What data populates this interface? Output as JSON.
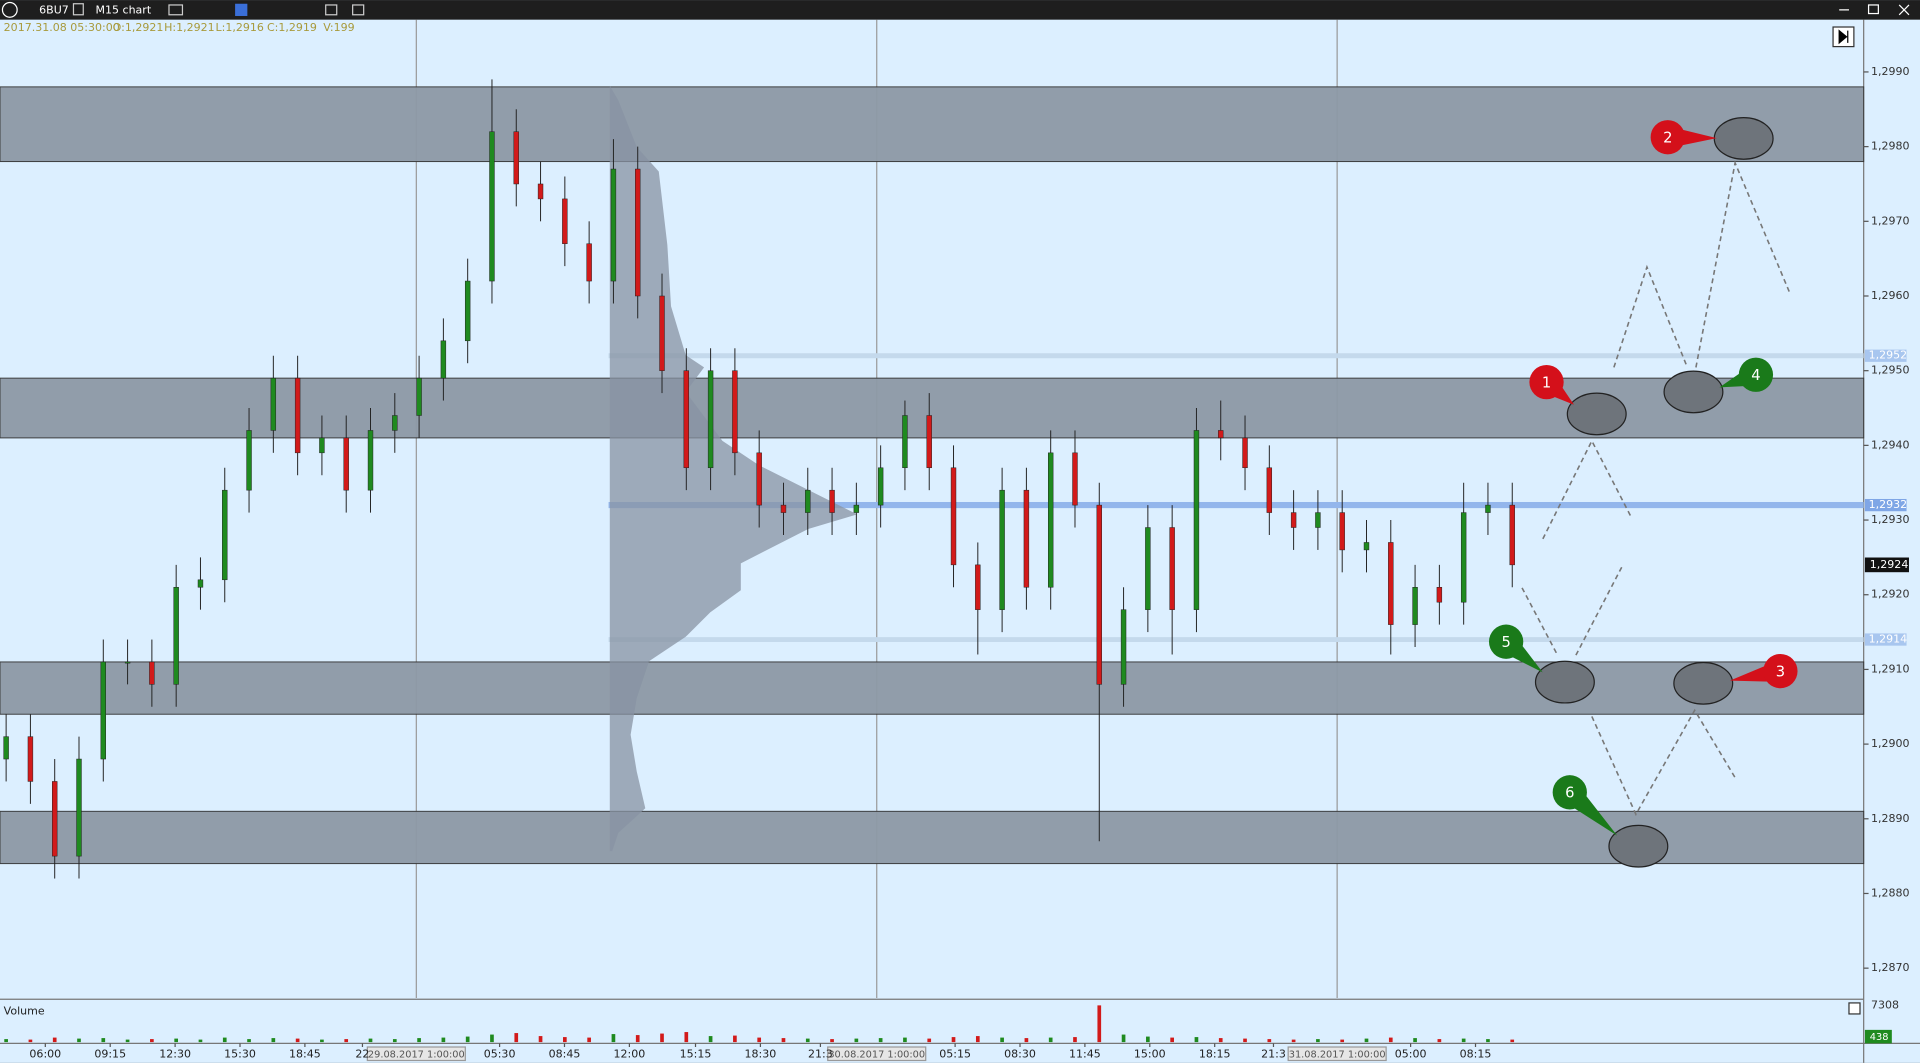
{
  "toolbar": {
    "symbol": "6BU7",
    "chart_type": "M15 chart"
  },
  "info_line": {
    "datetime": "2017.31.08 05:30:00",
    "open": "O:1,2921",
    "high": "H:1,2921",
    "low": "L:1,2916",
    "close": "C:1,2919",
    "volume": "V:199"
  },
  "chart_data": {
    "type": "candlestick",
    "ylim": [
      1.2866,
      1.2997
    ],
    "yticks": [
      {
        "value": 1.299,
        "label": "1,2990"
      },
      {
        "value": 1.298,
        "label": "1,2980"
      },
      {
        "value": 1.297,
        "label": "1,2970"
      },
      {
        "value": 1.296,
        "label": "1,2960"
      },
      {
        "value": 1.295,
        "label": "1,2950"
      },
      {
        "value": 1.294,
        "label": "1,2940"
      },
      {
        "value": 1.293,
        "label": "1,2930"
      },
      {
        "value": 1.292,
        "label": "1,2920"
      },
      {
        "value": 1.291,
        "label": "1,2910"
      },
      {
        "value": 1.29,
        "label": "1,2900"
      },
      {
        "value": 1.289,
        "label": "1,2890"
      },
      {
        "value": 1.288,
        "label": "1,2880"
      },
      {
        "value": 1.287,
        "label": "1,2870"
      }
    ],
    "x_labels": [
      "06:00",
      "09:15",
      "12:30",
      "15:30",
      "18:45",
      "22",
      "05:30",
      "08:45",
      "12:00",
      "15:15",
      "18:30",
      "21:3",
      "05:15",
      "08:30",
      "11:45",
      "15:00",
      "18:15",
      "21:3",
      "05:00",
      "08:15"
    ],
    "date_labels": [
      "29.08.2017 1:00:00",
      "30.08.2017 1:00:00",
      "31.08.2017 1:00:00"
    ],
    "open": [
      1.2898,
      1.2901,
      1.2895,
      1.2885,
      1.2898,
      1.2911,
      1.2911,
      1.2908,
      1.2921,
      1.2922,
      1.2934,
      1.2942,
      1.2949,
      1.2939,
      1.2941,
      1.2934,
      1.2942,
      1.2944,
      1.2949,
      1.2954,
      1.2962,
      1.2982,
      1.2975,
      1.2973,
      1.2967,
      1.2962,
      1.2977,
      1.296,
      1.295,
      1.2937,
      1.295,
      1.2939,
      1.2932,
      1.2931,
      1.2934,
      1.2931,
      1.2932,
      1.2937,
      1.2944,
      1.2937,
      1.2924,
      1.2918,
      1.2934,
      1.2921,
      1.2939,
      1.2932,
      1.2908,
      1.2918,
      1.2929,
      1.2918,
      1.2942,
      1.2941,
      1.2937,
      1.2931,
      1.2929,
      1.2931,
      1.2926,
      1.2927,
      1.2916,
      1.2921,
      1.2919,
      1.2931,
      1.2932
    ],
    "high": [
      1.2904,
      1.2904,
      1.2898,
      1.2901,
      1.2914,
      1.2914,
      1.2914,
      1.2924,
      1.2925,
      1.2937,
      1.2945,
      1.2952,
      1.2952,
      1.2944,
      1.2944,
      1.2945,
      1.2947,
      1.2952,
      1.2957,
      1.2965,
      1.2989,
      1.2985,
      1.2978,
      1.2976,
      1.297,
      1.2981,
      1.298,
      1.2963,
      1.2953,
      1.2953,
      1.2953,
      1.2942,
      1.2935,
      1.2937,
      1.2937,
      1.2935,
      1.294,
      1.2946,
      1.2947,
      1.294,
      1.2927,
      1.2937,
      1.2937,
      1.2942,
      1.2942,
      1.2935,
      1.2921,
      1.2932,
      1.2932,
      1.2945,
      1.2946,
      1.2944,
      1.294,
      1.2934,
      1.2934,
      1.2934,
      1.293,
      1.293,
      1.2924,
      1.2924,
      1.2935,
      1.2935,
      1.2935
    ],
    "low": [
      1.2895,
      1.2892,
      1.2882,
      1.2882,
      1.2895,
      1.2908,
      1.2905,
      1.2905,
      1.2918,
      1.2919,
      1.2931,
      1.2939,
      1.2936,
      1.2936,
      1.2931,
      1.2931,
      1.2939,
      1.2941,
      1.2946,
      1.2951,
      1.2959,
      1.2972,
      1.297,
      1.2964,
      1.2959,
      1.2959,
      1.2957,
      1.2947,
      1.2934,
      1.2934,
      1.2936,
      1.2929,
      1.2928,
      1.2928,
      1.2928,
      1.2928,
      1.2929,
      1.2934,
      1.2934,
      1.2921,
      1.2912,
      1.2915,
      1.2918,
      1.2918,
      1.2929,
      1.2887,
      1.2905,
      1.2915,
      1.2912,
      1.2915,
      1.2938,
      1.2934,
      1.2928,
      1.2926,
      1.2926,
      1.2923,
      1.2923,
      1.2912,
      1.2913,
      1.2916,
      1.2916,
      1.2928,
      1.2921
    ],
    "close": [
      1.2901,
      1.2895,
      1.2885,
      1.2898,
      1.2911,
      1.2911,
      1.2908,
      1.2921,
      1.2922,
      1.2934,
      1.2942,
      1.2949,
      1.2939,
      1.2941,
      1.2934,
      1.2942,
      1.2944,
      1.2949,
      1.2954,
      1.2962,
      1.2982,
      1.2975,
      1.2973,
      1.2967,
      1.2962,
      1.2977,
      1.296,
      1.295,
      1.2937,
      1.295,
      1.2939,
      1.2932,
      1.2931,
      1.2934,
      1.2931,
      1.2932,
      1.2937,
      1.2944,
      1.2937,
      1.2924,
      1.2918,
      1.2934,
      1.2921,
      1.2939,
      1.2932,
      1.2908,
      1.2918,
      1.2929,
      1.2918,
      1.2942,
      1.2941,
      1.2937,
      1.2931,
      1.2929,
      1.2931,
      1.2926,
      1.2927,
      1.2916,
      1.2921,
      1.2919,
      1.2931,
      1.2932,
      1.2924
    ],
    "up_color": "#1f8a1f",
    "down_color": "#d21a1a",
    "zones": [
      {
        "low": 1.2978,
        "high": 1.2988
      },
      {
        "low": 1.2941,
        "high": 1.2949
      },
      {
        "low": 1.2904,
        "high": 1.2911
      },
      {
        "low": 1.2884,
        "high": 1.2891
      }
    ],
    "levels": [
      {
        "value": 1.2952,
        "label": "1,2952"
      },
      {
        "value": 1.2932,
        "label": "1,2932"
      },
      {
        "value": 1.2914,
        "label": "1,2914"
      }
    ],
    "last_price": {
      "value": 1.2924,
      "label": "1,2924"
    },
    "volume": {
      "label": "Volume",
      "vlim": [
        0,
        7308
      ],
      "vticks": [
        7308
      ],
      "current": 438,
      "values": [
        600,
        500,
        900,
        700,
        800,
        500,
        600,
        700,
        500,
        900,
        600,
        800,
        700,
        500,
        600,
        700,
        600,
        800,
        900,
        1100,
        1500,
        1800,
        1200,
        1000,
        900,
        1600,
        1400,
        1700,
        2000,
        1200,
        1300,
        900,
        800,
        700,
        600,
        700,
        800,
        900,
        700,
        1000,
        1200,
        900,
        800,
        900,
        1000,
        7308,
        1500,
        1100,
        900,
        1000,
        800,
        700,
        600,
        500,
        600,
        500,
        700,
        900,
        800,
        600,
        700,
        600,
        500
      ]
    },
    "annotations": [
      {
        "label": "1",
        "color": "#d4101a"
      },
      {
        "label": "2",
        "color": "#d4101a"
      },
      {
        "label": "3",
        "color": "#d4101a"
      },
      {
        "label": "4",
        "color": "#1a7a1a"
      },
      {
        "label": "5",
        "color": "#1a7a1a"
      },
      {
        "label": "6",
        "color": "#1a7a1a"
      }
    ]
  }
}
